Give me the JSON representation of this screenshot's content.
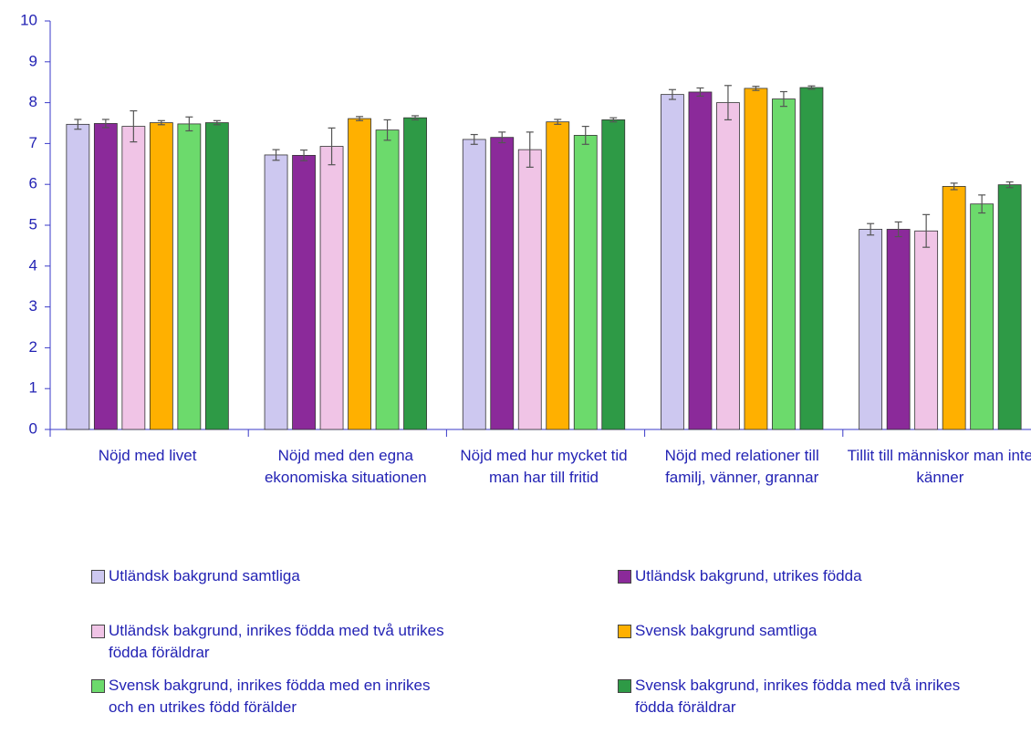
{
  "chart_data": {
    "type": "bar",
    "categories": [
      "Nöjd med livet",
      "Nöjd med den egna ekonomiska situationen",
      "Nöjd med hur mycket tid man har till fritid",
      "Nöjd med relationer till familj, vänner, grannar",
      "Tillit till människor man inte känner"
    ],
    "series": [
      {
        "name": "Utländsk bakgrund samtliga",
        "color": "#cdc8f0",
        "values": [
          7.47,
          6.72,
          7.1,
          8.2,
          4.9
        ],
        "errors": [
          0.12,
          0.13,
          0.12,
          0.12,
          0.14
        ]
      },
      {
        "name": "Utländsk bakgrund, utrikes födda",
        "color": "#8b2a9a",
        "values": [
          7.49,
          6.71,
          7.15,
          8.26,
          4.9
        ],
        "errors": [
          0.1,
          0.13,
          0.13,
          0.1,
          0.18
        ]
      },
      {
        "name": "Utländsk bakgrund, inrikes födda med två utrikes födda föräldrar",
        "color": "#f0c4e6",
        "values": [
          7.42,
          6.93,
          6.85,
          8.0,
          4.86
        ],
        "errors": [
          0.38,
          0.45,
          0.43,
          0.42,
          0.4
        ]
      },
      {
        "name": "Svensk bakgrund samtliga",
        "color": "#ffb000",
        "values": [
          7.51,
          7.61,
          7.53,
          8.35,
          5.95
        ],
        "errors": [
          0.05,
          0.05,
          0.06,
          0.05,
          0.08
        ]
      },
      {
        "name": "Svensk bakgrund, inrikes födda med en inrikes och en utrikes född förälder",
        "color": "#6cda6c",
        "values": [
          7.48,
          7.33,
          7.2,
          8.09,
          5.52
        ],
        "errors": [
          0.17,
          0.25,
          0.22,
          0.18,
          0.22
        ]
      },
      {
        "name": "Svensk bakgrund, inrikes födda med två inrikes födda föräldrar",
        "color": "#2e9a46",
        "values": [
          7.51,
          7.63,
          7.58,
          8.37,
          5.99
        ],
        "errors": [
          0.05,
          0.05,
          0.05,
          0.04,
          0.07
        ]
      }
    ],
    "ylim": [
      0,
      10
    ],
    "yticks": [
      0,
      1,
      2,
      3,
      4,
      5,
      6,
      7,
      8,
      9,
      10
    ],
    "grid": false
  }
}
